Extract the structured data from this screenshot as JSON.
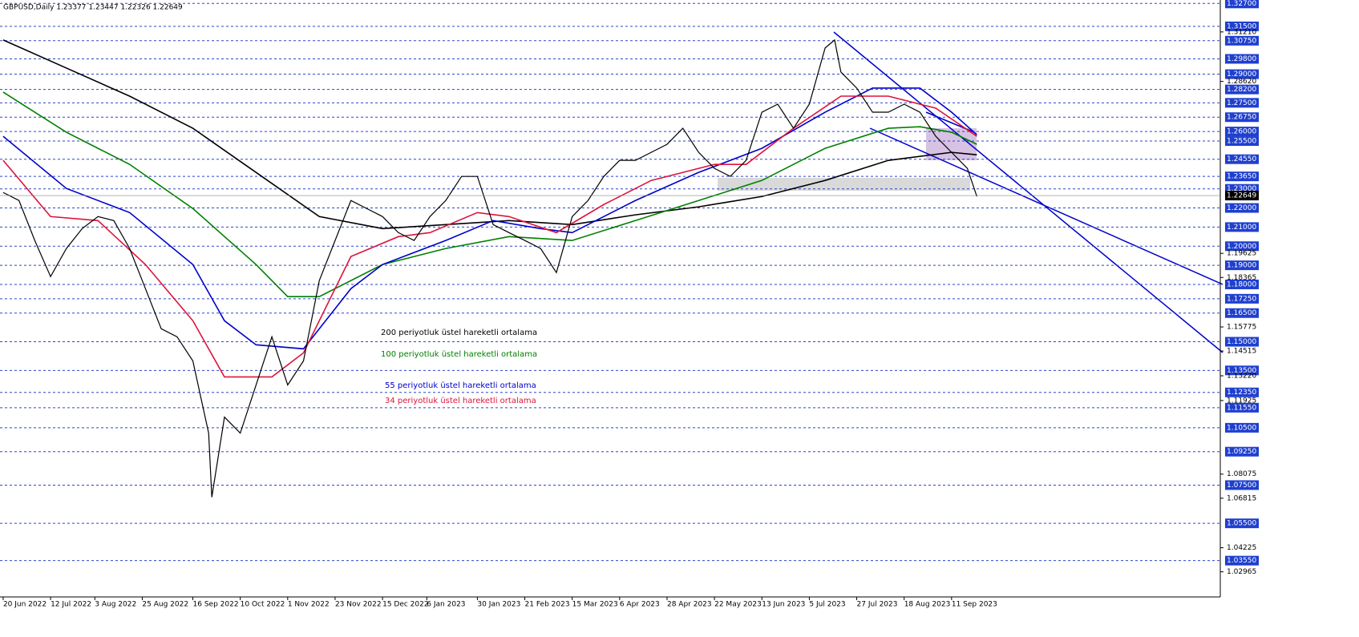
{
  "chart_data": {
    "type": "line",
    "title": "GBPUSD,Daily  1.23377 1.23447 1.22326 1.22649",
    "xlim": [
      -1,
      385
    ],
    "ylim": [
      1.0165,
      1.3288
    ],
    "xticks": [
      {
        "value": 0,
        "label": "20 Jun 2022"
      },
      {
        "value": 15,
        "label": "12 Jul 2022"
      },
      {
        "value": 29,
        "label": "3 Aug 2022"
      },
      {
        "value": 44,
        "label": "25 Aug 2022"
      },
      {
        "value": 60,
        "label": "16 Sep 2022"
      },
      {
        "value": 75,
        "label": "10 Oct 2022"
      },
      {
        "value": 90,
        "label": "1 Nov 2022"
      },
      {
        "value": 105,
        "label": "23 Nov 2022"
      },
      {
        "value": 120,
        "label": "15 Dec 2022"
      },
      {
        "value": 134,
        "label": "6 Jan 2023"
      },
      {
        "value": 150,
        "label": "30 Jan 2023"
      },
      {
        "value": 165,
        "label": "21 Feb 2023"
      },
      {
        "value": 180,
        "label": "15 Mar 2023"
      },
      {
        "value": 195,
        "label": "6 Apr 2023"
      },
      {
        "value": 210,
        "label": "28 Apr 2023"
      },
      {
        "value": 225,
        "label": "22 May 2023"
      },
      {
        "value": 240,
        "label": "13 Jun 2023"
      },
      {
        "value": 255,
        "label": "5 Jul 2023"
      },
      {
        "value": 270,
        "label": "27 Jul 2023"
      },
      {
        "value": 285,
        "label": "18 Aug 2023"
      },
      {
        "value": 300,
        "label": "11 Sep 2023"
      }
    ],
    "levels": [
      {
        "value": 1.327,
        "label": "1.32700"
      },
      {
        "value": 1.315,
        "label": "1.31500"
      },
      {
        "value": 1.3075,
        "label": "1.30750"
      },
      {
        "value": 1.298,
        "label": "1.29800"
      },
      {
        "value": 1.29,
        "label": "1.29000"
      },
      {
        "value": 1.282,
        "label": "1.28200"
      },
      {
        "value": 1.275,
        "label": "1.27500"
      },
      {
        "value": 1.2675,
        "label": "1.26750"
      },
      {
        "value": 1.26,
        "label": "1.26000"
      },
      {
        "value": 1.255,
        "label": "1.25500"
      },
      {
        "value": 1.2455,
        "label": "1.24550"
      },
      {
        "value": 1.2365,
        "label": "1.23650"
      },
      {
        "value": 1.23,
        "label": "1.23000"
      },
      {
        "value": 1.22,
        "label": "1.22000"
      },
      {
        "value": 1.21,
        "label": "1.21000"
      },
      {
        "value": 1.2,
        "label": "1.20000"
      },
      {
        "value": 1.19,
        "label": "1.19000"
      },
      {
        "value": 1.18,
        "label": "1.18000"
      },
      {
        "value": 1.1725,
        "label": "1.17250"
      },
      {
        "value": 1.165,
        "label": "1.16500"
      },
      {
        "value": 1.15,
        "label": "1.15000"
      },
      {
        "value": 1.135,
        "label": "1.13500"
      },
      {
        "value": 1.1235,
        "label": "1.12350"
      },
      {
        "value": 1.1155,
        "label": "1.11550"
      },
      {
        "value": 1.105,
        "label": "1.10500"
      },
      {
        "value": 1.0925,
        "label": "1.09250"
      },
      {
        "value": 1.075,
        "label": "1.07500"
      },
      {
        "value": 1.055,
        "label": "1.05500"
      },
      {
        "value": 1.0355,
        "label": "1.03550"
      }
    ],
    "yticks": [
      {
        "value": 1.3121,
        "label": "1.31210"
      },
      {
        "value": 1.2862,
        "label": "1.28620"
      },
      {
        "value": 1.19625,
        "label": "1.19625"
      },
      {
        "value": 1.18365,
        "label": "1.18365"
      },
      {
        "value": 1.15775,
        "label": "1.15775"
      },
      {
        "value": 1.14515,
        "label": "1.14515"
      },
      {
        "value": 1.1322,
        "label": "1.13220"
      },
      {
        "value": 1.11925,
        "label": "1.11925"
      },
      {
        "value": 1.08075,
        "label": "1.08075"
      },
      {
        "value": 1.06815,
        "label": "1.06815"
      },
      {
        "value": 1.04225,
        "label": "1.04225"
      },
      {
        "value": 1.02965,
        "label": "1.02965"
      }
    ],
    "current": {
      "value": 1.22649,
      "label": "1.22649"
    },
    "price": {
      "color": "#000000",
      "x": [
        0,
        5,
        10,
        15,
        20,
        25,
        30,
        35,
        40,
        45,
        50,
        55,
        60,
        65,
        66,
        70,
        75,
        80,
        85,
        90,
        95,
        100,
        105,
        110,
        115,
        120,
        125,
        130,
        135,
        140,
        145,
        150,
        155,
        160,
        165,
        170,
        175,
        180,
        185,
        190,
        195,
        200,
        205,
        210,
        215,
        220,
        225,
        230,
        235,
        240,
        245,
        250,
        255,
        260,
        263,
        265,
        270,
        275,
        280,
        285,
        290,
        295,
        300,
        305,
        308
      ],
      "values": [
        1.2281,
        1.2239,
        1.203,
        1.1841,
        1.1988,
        1.2092,
        1.2155,
        1.2134,
        1.1988,
        1.1778,
        1.1568,
        1.1526,
        1.14,
        1.1022,
        1.0687,
        1.1106,
        1.1022,
        1.1274,
        1.1526,
        1.1274,
        1.14,
        1.182,
        1.203,
        1.2239,
        1.2197,
        1.2155,
        1.2071,
        1.203,
        1.2155,
        1.2239,
        1.2365,
        1.2365,
        1.2113,
        1.2071,
        1.203,
        1.1988,
        1.1862,
        1.2155,
        1.2239,
        1.2365,
        1.2449,
        1.2449,
        1.2491,
        1.2533,
        1.2617,
        1.2491,
        1.2407,
        1.2365,
        1.2449,
        1.2701,
        1.2743,
        1.2617,
        1.2743,
        1.3037,
        1.3079,
        1.2911,
        1.2827,
        1.2701,
        1.2701,
        1.2743,
        1.2701,
        1.2575,
        1.2491,
        1.2407,
        1.226
      ]
    },
    "series": [
      {
        "name": "200 periyotluk üstel hareketli ortalama",
        "color": "#000000",
        "x": [
          0,
          20,
          40,
          60,
          80,
          100,
          120,
          140,
          160,
          180,
          200,
          220,
          240,
          260,
          280,
          300,
          308
        ],
        "values": [
          1.3079,
          1.2932,
          1.2785,
          1.2617,
          1.2386,
          1.2155,
          1.2092,
          1.2113,
          1.2134,
          1.2113,
          1.2164,
          1.2206,
          1.226,
          1.2344,
          1.2449,
          1.2491,
          1.2478
        ]
      },
      {
        "name": "100 periyotluk üstel hareketli ortalama",
        "color": "#008000",
        "x": [
          0,
          20,
          40,
          60,
          80,
          90,
          100,
          120,
          140,
          160,
          180,
          200,
          220,
          240,
          260,
          280,
          290,
          300,
          308
        ],
        "values": [
          1.2806,
          1.2596,
          1.2428,
          1.2197,
          1.1904,
          1.1736,
          1.1736,
          1.1904,
          1.1988,
          1.205,
          1.203,
          1.2134,
          1.2239,
          1.2344,
          1.2512,
          1.2617,
          1.2625,
          1.2596,
          1.2533
        ]
      },
      {
        "name": "55 periyotluk üstel hareketli ortalama",
        "color": "#0000cc",
        "x": [
          0,
          20,
          40,
          60,
          70,
          80,
          95,
          110,
          120,
          140,
          155,
          170,
          180,
          200,
          220,
          240,
          260,
          275,
          290,
          300,
          308
        ],
        "values": [
          1.2575,
          1.2302,
          1.2176,
          1.1904,
          1.161,
          1.1484,
          1.1463,
          1.1778,
          1.1904,
          1.203,
          1.2134,
          1.2092,
          1.2071,
          1.2239,
          1.2386,
          1.2512,
          1.2701,
          1.2827,
          1.2827,
          1.2701,
          1.2583
        ]
      },
      {
        "name": "34 periyotluk üstel hareketli ortalama",
        "color": "#dc143c",
        "x": [
          0,
          15,
          30,
          45,
          60,
          70,
          85,
          95,
          110,
          125,
          135,
          150,
          160,
          175,
          190,
          205,
          225,
          235,
          250,
          265,
          280,
          295,
          308
        ],
        "values": [
          1.2449,
          1.2155,
          1.2134,
          1.1904,
          1.161,
          1.1316,
          1.1316,
          1.1442,
          1.1946,
          1.205,
          1.2071,
          1.2176,
          1.2155,
          1.2071,
          1.2218,
          1.2344,
          1.2428,
          1.2428,
          1.2617,
          1.2785,
          1.2785,
          1.2722,
          1.2575
        ]
      }
    ]
  }
}
